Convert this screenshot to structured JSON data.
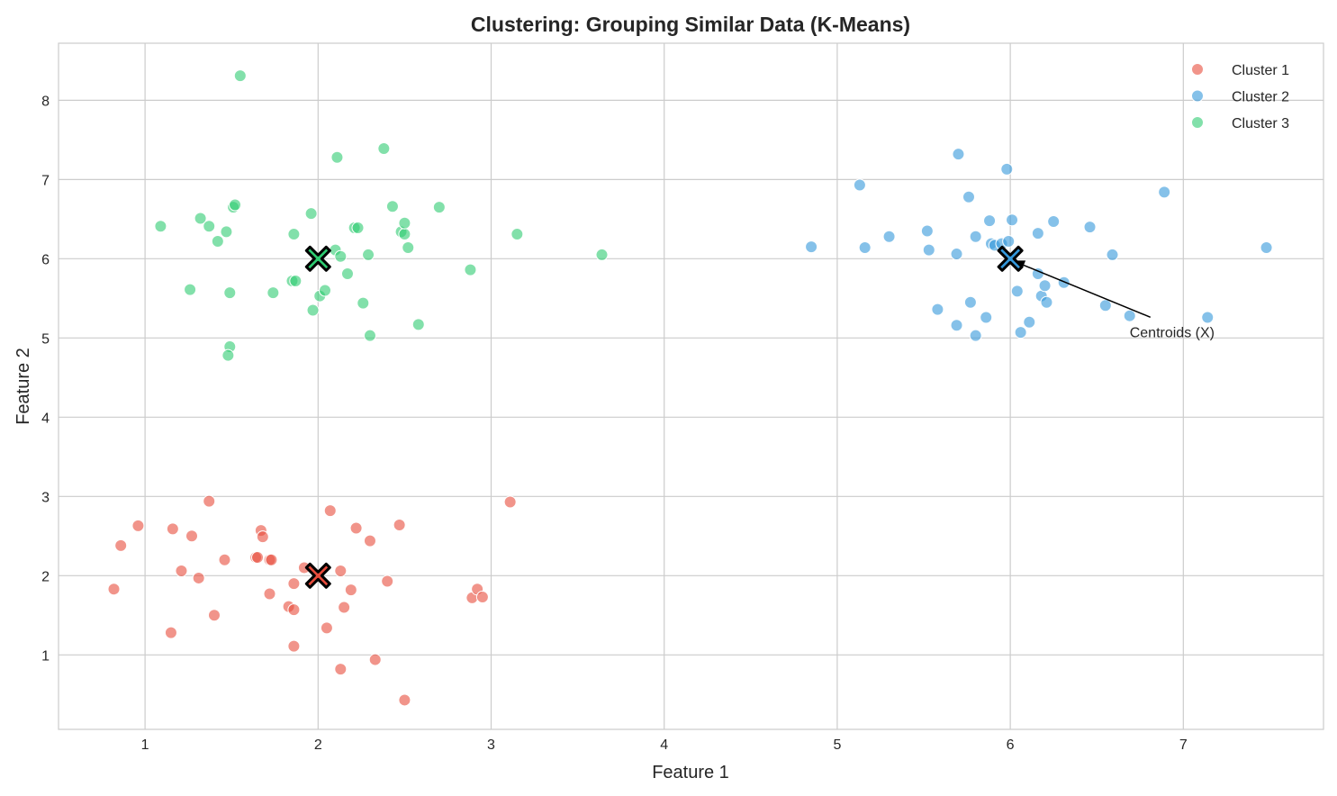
{
  "chart_data": {
    "type": "scatter",
    "title": "Clustering: Grouping Similar Data (K-Means)",
    "xlabel": "Feature 1",
    "ylabel": "Feature 2",
    "xlim": [
      0.5,
      7.81
    ],
    "ylim": [
      0.06,
      8.72
    ],
    "xticks": [
      1,
      2,
      3,
      4,
      5,
      6,
      7
    ],
    "yticks": [
      1,
      2,
      3,
      4,
      5,
      6,
      7,
      8
    ],
    "grid": true,
    "legend_position": "top-right",
    "series": [
      {
        "name": "Cluster 1",
        "color": "#e74c3c",
        "points": [
          [
            0.82,
            1.83
          ],
          [
            0.96,
            2.63
          ],
          [
            0.86,
            2.38
          ],
          [
            1.16,
            2.59
          ],
          [
            1.27,
            2.5
          ],
          [
            1.21,
            2.06
          ],
          [
            1.31,
            1.97
          ],
          [
            1.15,
            1.28
          ],
          [
            1.37,
            2.94
          ],
          [
            1.46,
            2.2
          ],
          [
            1.4,
            1.5
          ],
          [
            1.64,
            2.23
          ],
          [
            1.65,
            2.23
          ],
          [
            1.67,
            2.57
          ],
          [
            1.68,
            2.49
          ],
          [
            1.72,
            2.2
          ],
          [
            1.73,
            2.2
          ],
          [
            1.72,
            1.77
          ],
          [
            1.83,
            1.61
          ],
          [
            1.86,
            1.57
          ],
          [
            1.86,
            1.9
          ],
          [
            1.86,
            1.11
          ],
          [
            1.92,
            2.1
          ],
          [
            2.07,
            2.82
          ],
          [
            2.13,
            2.06
          ],
          [
            2.05,
            1.34
          ],
          [
            2.13,
            0.82
          ],
          [
            2.15,
            1.6
          ],
          [
            2.19,
            1.82
          ],
          [
            2.22,
            2.6
          ],
          [
            2.3,
            2.44
          ],
          [
            2.33,
            0.94
          ],
          [
            2.4,
            1.93
          ],
          [
            2.47,
            2.64
          ],
          [
            2.5,
            0.43
          ],
          [
            2.89,
            1.72
          ],
          [
            2.92,
            1.83
          ],
          [
            2.95,
            1.73
          ],
          [
            3.11,
            2.93
          ]
        ]
      },
      {
        "name": "Cluster 2",
        "color": "#3498db",
        "points": [
          [
            4.85,
            6.15
          ],
          [
            5.13,
            6.93
          ],
          [
            5.16,
            6.14
          ],
          [
            5.3,
            6.28
          ],
          [
            5.52,
            6.35
          ],
          [
            5.53,
            6.11
          ],
          [
            5.58,
            5.36
          ],
          [
            5.69,
            6.06
          ],
          [
            5.69,
            5.16
          ],
          [
            5.7,
            7.32
          ],
          [
            5.76,
            6.78
          ],
          [
            5.77,
            5.45
          ],
          [
            5.8,
            6.28
          ],
          [
            5.8,
            5.03
          ],
          [
            5.86,
            5.26
          ],
          [
            5.88,
            6.48
          ],
          [
            5.89,
            6.19
          ],
          [
            5.91,
            6.17
          ],
          [
            5.95,
            6.19
          ],
          [
            5.99,
            6.22
          ],
          [
            5.98,
            7.13
          ],
          [
            6.01,
            6.49
          ],
          [
            6.04,
            5.59
          ],
          [
            6.06,
            5.07
          ],
          [
            6.11,
            5.2
          ],
          [
            6.16,
            5.81
          ],
          [
            6.16,
            6.32
          ],
          [
            6.18,
            5.53
          ],
          [
            6.2,
            5.66
          ],
          [
            6.21,
            5.45
          ],
          [
            6.25,
            6.47
          ],
          [
            6.31,
            5.7
          ],
          [
            6.46,
            6.4
          ],
          [
            6.55,
            5.41
          ],
          [
            6.59,
            6.05
          ],
          [
            6.69,
            5.28
          ],
          [
            6.89,
            6.84
          ],
          [
            7.14,
            5.26
          ],
          [
            7.48,
            6.14
          ]
        ]
      },
      {
        "name": "Cluster 3",
        "color": "#2ecc71",
        "points": [
          [
            1.55,
            8.31
          ],
          [
            1.09,
            6.41
          ],
          [
            1.32,
            6.51
          ],
          [
            1.37,
            6.41
          ],
          [
            1.42,
            6.22
          ],
          [
            1.47,
            6.34
          ],
          [
            1.51,
            6.65
          ],
          [
            1.52,
            6.68
          ],
          [
            1.26,
            5.61
          ],
          [
            1.49,
            4.89
          ],
          [
            1.48,
            4.78
          ],
          [
            1.49,
            5.57
          ],
          [
            1.74,
            5.57
          ],
          [
            1.86,
            6.31
          ],
          [
            1.85,
            5.72
          ],
          [
            1.87,
            5.72
          ],
          [
            1.96,
            6.57
          ],
          [
            1.97,
            5.35
          ],
          [
            2.01,
            5.53
          ],
          [
            2.04,
            5.6
          ],
          [
            2.11,
            7.28
          ],
          [
            2.1,
            6.11
          ],
          [
            2.13,
            6.03
          ],
          [
            2.17,
            5.81
          ],
          [
            2.21,
            6.39
          ],
          [
            2.23,
            6.39
          ],
          [
            2.26,
            5.44
          ],
          [
            2.29,
            6.05
          ],
          [
            2.3,
            5.03
          ],
          [
            2.38,
            7.39
          ],
          [
            2.43,
            6.66
          ],
          [
            2.48,
            6.34
          ],
          [
            2.5,
            6.31
          ],
          [
            2.5,
            6.45
          ],
          [
            2.52,
            6.14
          ],
          [
            2.58,
            5.17
          ],
          [
            2.7,
            6.65
          ],
          [
            2.88,
            5.86
          ],
          [
            3.15,
            6.31
          ],
          [
            3.64,
            6.05
          ]
        ]
      }
    ],
    "centroids": [
      {
        "x": 2,
        "y": 2,
        "color": "#e74c3c"
      },
      {
        "x": 6,
        "y": 6,
        "color": "#3498db"
      },
      {
        "x": 2,
        "y": 6,
        "color": "#2ecc71"
      }
    ],
    "annotation": {
      "text": "Centroids (X)",
      "xy": [
        6,
        6
      ],
      "xytext": [
        6.69,
        5.08
      ]
    }
  }
}
